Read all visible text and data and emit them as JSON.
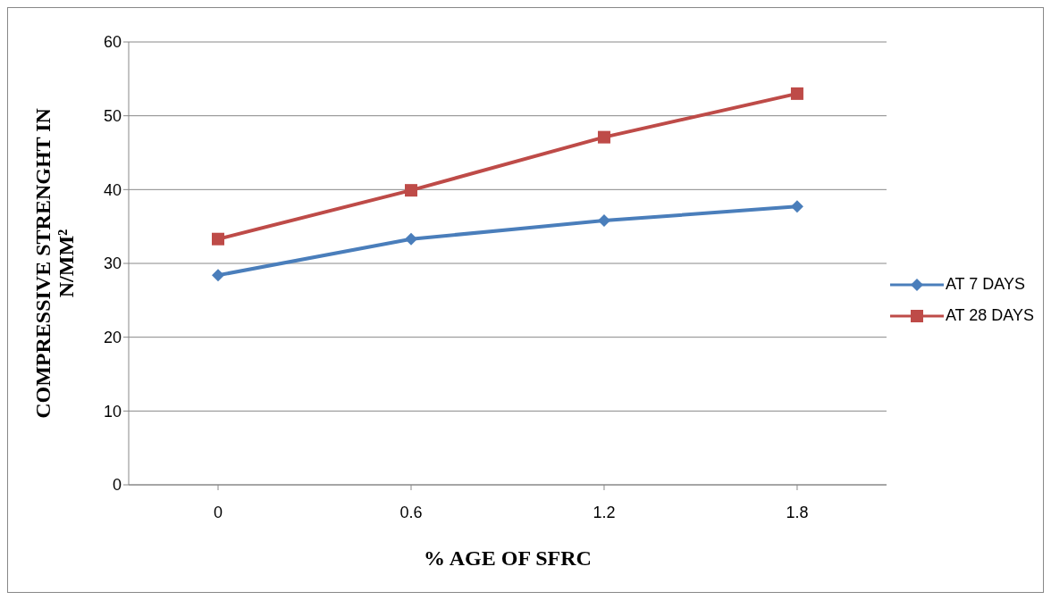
{
  "chart_data": {
    "type": "line",
    "xlabel": "% AGE OF SFRC",
    "ylabel": "COMPRESSIVE STRENGHT  IN\nN/MM²",
    "categories": [
      "0",
      "0.6",
      "1.2",
      "1.8"
    ],
    "series": [
      {
        "name": "AT 7 DAYS",
        "color": "#4a7ebb",
        "marker": "diamond",
        "values": [
          28.4,
          33.3,
          35.8,
          37.7
        ]
      },
      {
        "name": "AT 28 DAYS",
        "color": "#be4b48",
        "marker": "square",
        "values": [
          33.3,
          39.9,
          47.1,
          53.0
        ]
      }
    ],
    "ylim": [
      0,
      60
    ],
    "yticks": [
      0,
      10,
      20,
      30,
      40,
      50,
      60
    ],
    "grid": "y",
    "legend": "right",
    "line_style": "solid"
  }
}
